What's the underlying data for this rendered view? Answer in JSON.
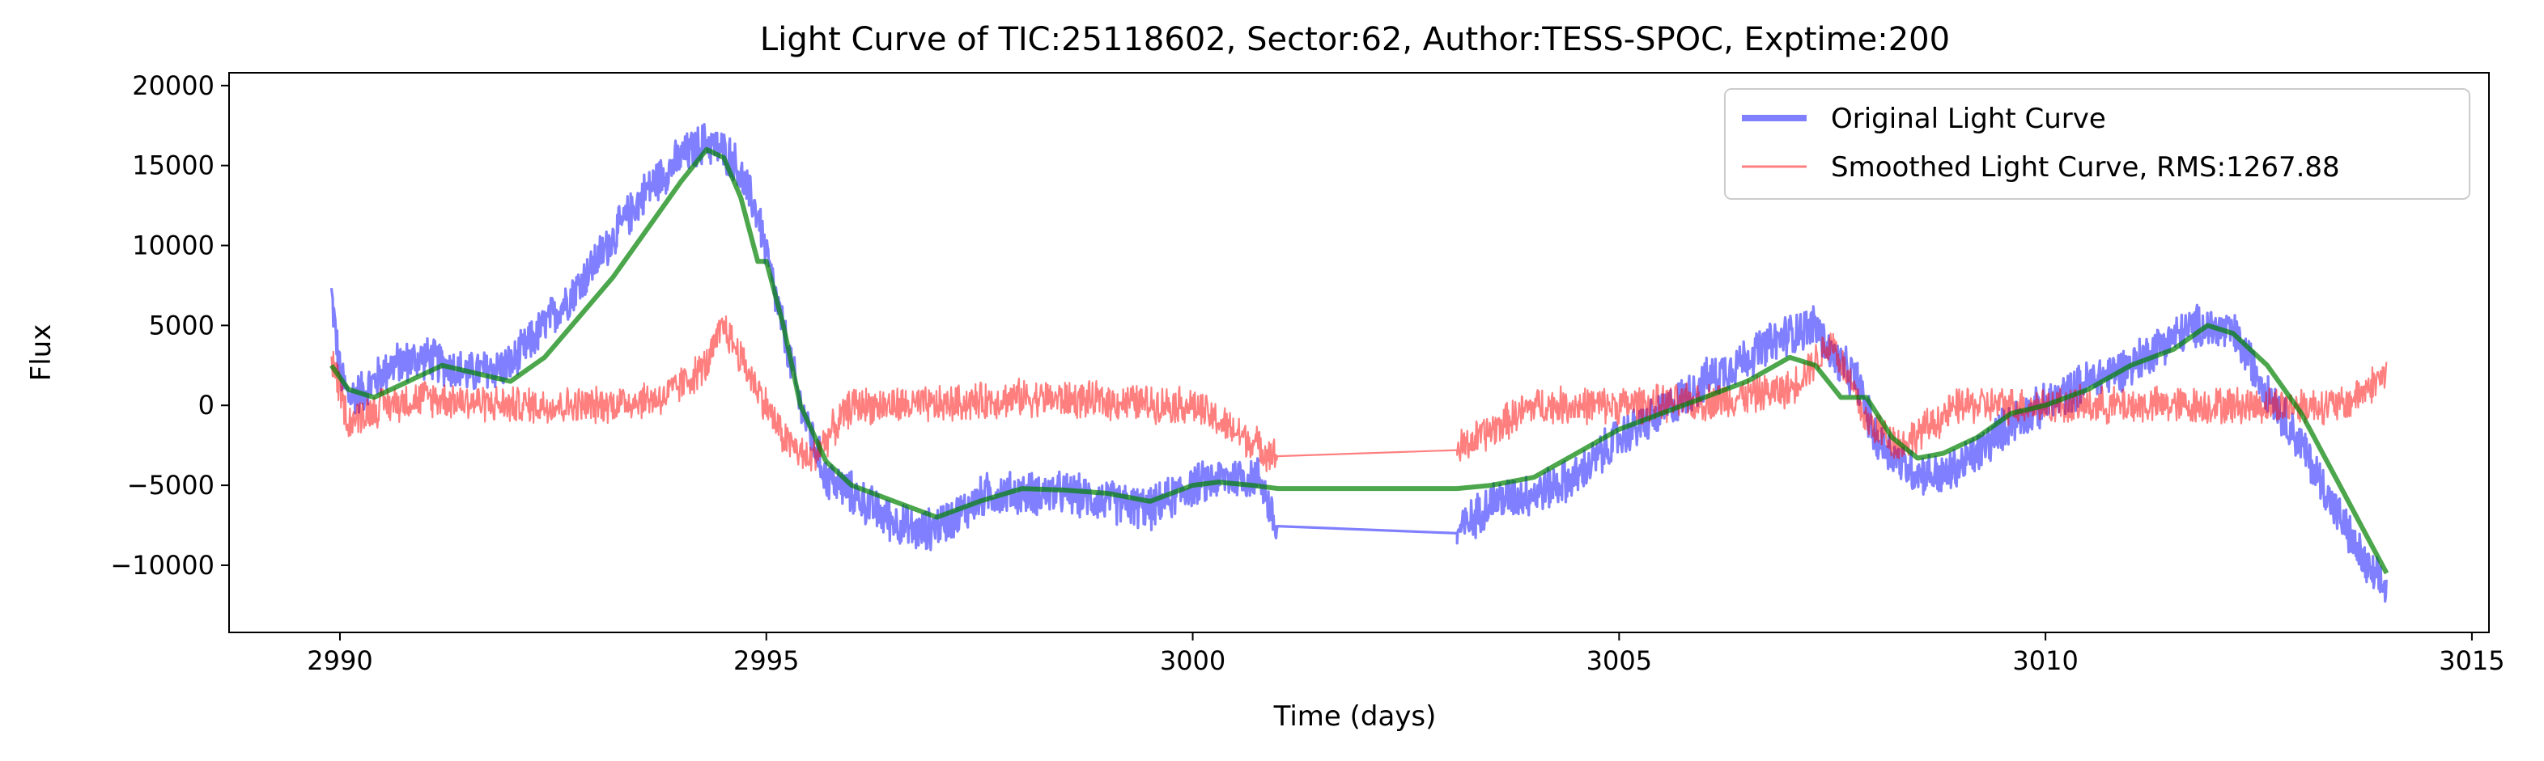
{
  "chart_data": {
    "type": "line",
    "title": "Light Curve of TIC:25118602, Sector:62, Author:TESS-SPOC, Exptime:200",
    "xlabel": "Time (days)",
    "ylabel": "Flux",
    "xlim": [
      2988.7,
      3015.2
    ],
    "ylim": [
      -14200,
      20800
    ],
    "xticks": [
      2990,
      2995,
      3000,
      3005,
      3010,
      3015
    ],
    "yticks": [
      -10000,
      -5000,
      0,
      5000,
      10000,
      15000,
      20000
    ],
    "grid": false,
    "legend_position": "top-right",
    "series": [
      {
        "name": "Original Light Curve",
        "color": "#0000ff",
        "alpha": 0.5,
        "style": "noisy-band",
        "noise_amplitude": 1500,
        "gap": [
          3001.0,
          3003.1
        ],
        "x": [
          2989.9,
          2990.0,
          2990.1,
          2990.3,
          2990.6,
          2991.0,
          2991.5,
          2992.0,
          2992.4,
          2992.8,
          2993.2,
          2993.6,
          2994.0,
          2994.3,
          2994.6,
          2994.9,
          2995.1,
          2995.4,
          2995.7,
          2996.0,
          2996.4,
          2996.8,
          2997.2,
          2997.6,
          2998.0,
          2998.5,
          2999.0,
          2999.5,
          3000.0,
          3000.4,
          3000.8,
          3001.0,
          3003.1,
          3003.5,
          3004.0,
          3004.5,
          3005.0,
          3005.5,
          3006.0,
          3006.5,
          3007.0,
          3007.3,
          3007.5,
          3007.8,
          3008.0,
          3008.4,
          3008.8,
          3009.2,
          3009.6,
          3010.0,
          3010.5,
          3011.0,
          3011.4,
          3011.8,
          3012.2,
          3012.6,
          3013.0,
          3013.4,
          3013.8,
          3014.0
        ],
        "y": [
          7000,
          2000,
          500,
          1000,
          2500,
          3000,
          2000,
          2500,
          5000,
          7500,
          10500,
          13500,
          15500,
          16500,
          15500,
          12000,
          7000,
          0,
          -4500,
          -5500,
          -7000,
          -8000,
          -7000,
          -5500,
          -5500,
          -5500,
          -6000,
          -6500,
          -5000,
          -4500,
          -4500,
          -8300,
          -8000,
          -6000,
          -5500,
          -4500,
          -2000,
          -500,
          1500,
          3000,
          4500,
          5000,
          3000,
          1500,
          -2000,
          -4000,
          -4500,
          -3000,
          -1000,
          0,
          1500,
          2500,
          4000,
          5000,
          4500,
          1000,
          -2500,
          -6500,
          -10500,
          -11500
        ]
      },
      {
        "name": "Smoothed Light Curve, RMS:1267.88",
        "color": "#ff0000",
        "alpha": 0.5,
        "style": "noisy-line",
        "noise_amplitude": 1300,
        "gap": [
          3001.0,
          3003.1
        ],
        "x": [
          2989.9,
          2990.1,
          2990.5,
          2991.0,
          2992.0,
          2993.0,
          2993.8,
          2994.3,
          2994.5,
          2994.8,
          2995.2,
          2995.5,
          2996.0,
          2997.0,
          2998.0,
          3000.0,
          3001.0,
          3003.1,
          3004.0,
          3005.0,
          3006.0,
          3007.0,
          3007.5,
          3007.9,
          3008.3,
          3009.0,
          3010.0,
          3011.0,
          3012.0,
          3013.0,
          3013.5,
          3014.0
        ],
        "y": [
          3000,
          -1000,
          0,
          500,
          0,
          0,
          500,
          2500,
          5000,
          2000,
          -2000,
          -3500,
          0,
          0,
          500,
          0,
          -3300,
          -2800,
          0,
          0,
          200,
          1000,
          4000,
          -1000,
          -2500,
          0,
          0,
          0,
          0,
          0,
          0,
          2000
        ]
      },
      {
        "name": "",
        "color": "#008000",
        "alpha": 0.7,
        "style": "smooth-line",
        "x": [
          2989.9,
          2990.1,
          2990.4,
          2990.8,
          2991.2,
          2991.6,
          2992.0,
          2992.4,
          2992.8,
          2993.2,
          2993.6,
          2994.0,
          2994.3,
          2994.5,
          2994.7,
          2994.9,
          2995.0,
          2995.2,
          2995.4,
          2995.7,
          2996.0,
          2996.5,
          2997.0,
          2997.5,
          2998.0,
          2998.5,
          2999.0,
          2999.5,
          3000.0,
          3000.3,
          3000.7,
          3001.0,
          3003.1,
          3003.5,
          3004.0,
          3004.5,
          3005.0,
          3005.5,
          3006.0,
          3006.5,
          3007.0,
          3007.3,
          3007.6,
          3007.9,
          3008.2,
          3008.5,
          3008.8,
          3009.2,
          3009.6,
          3010.0,
          3010.5,
          3011.0,
          3011.5,
          3011.9,
          3012.2,
          3012.6,
          3013.0,
          3013.4,
          3013.8,
          3014.0
        ],
        "y": [
          2500,
          1000,
          500,
          1500,
          2500,
          2000,
          1500,
          3000,
          5500,
          8000,
          11000,
          14000,
          16000,
          15500,
          13000,
          9000,
          9000,
          5000,
          0,
          -3500,
          -5000,
          -6000,
          -7000,
          -6000,
          -5200,
          -5300,
          -5500,
          -6000,
          -5000,
          -4800,
          -5000,
          -5200,
          -5200,
          -5000,
          -4500,
          -3000,
          -1500,
          -500,
          500,
          1500,
          3000,
          2500,
          500,
          500,
          -2000,
          -3300,
          -3000,
          -2000,
          -500,
          0,
          1000,
          2500,
          3500,
          5000,
          4500,
          2500,
          -500,
          -4500,
          -8500,
          -10500
        ]
      }
    ]
  }
}
